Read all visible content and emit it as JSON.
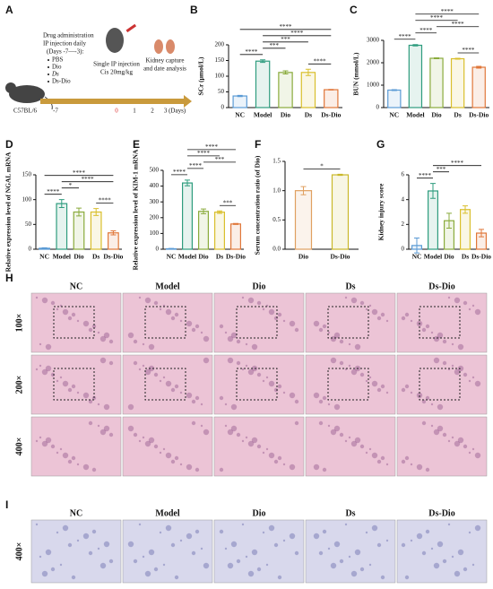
{
  "diagram": {
    "panel_label": "A",
    "admin_lines": [
      "Drug administration",
      "IP injection daily",
      "(Days -7—-3):"
    ],
    "groups": [
      "PBS",
      "Dio",
      "Ds",
      "Ds-Dio"
    ],
    "injection_lines": [
      "Single IP injection",
      "Cis 20mg/kg"
    ],
    "analysis_lines": [
      "Kidney capture",
      "and date analysis"
    ],
    "strain": "C57BL/6",
    "timeline": [
      "-7",
      "0",
      "1",
      "2",
      "3 (Days)"
    ]
  },
  "chart_data": [
    {
      "type": "bar",
      "panel_label": "B",
      "ylabel": "SCr (μmol/L)",
      "categories": [
        "NC",
        "Model",
        "Dio",
        "Ds",
        "Ds-Dio"
      ],
      "values": [
        37,
        148,
        112,
        112,
        57
      ],
      "errors": [
        2,
        4,
        5,
        10,
        1
      ],
      "colors": [
        "#5b9bd5",
        "#2e9c7e",
        "#8aab3c",
        "#d9bf2c",
        "#e0773a"
      ],
      "ylim": [
        0,
        200
      ],
      "yticks": [
        0,
        50,
        100,
        150,
        200
      ],
      "annotations": [
        {
          "between": [
            "NC",
            "Model"
          ],
          "label": "****"
        },
        {
          "between": [
            "Model",
            "Dio"
          ],
          "label": "***"
        },
        {
          "between": [
            "Ds",
            "Ds-Dio"
          ],
          "label": "****"
        },
        {
          "between": [
            "Model",
            "Ds"
          ],
          "label": "***"
        },
        {
          "between": [
            "Model",
            "Ds-Dio"
          ],
          "label": "****"
        },
        {
          "between": [
            "NC",
            "Ds-Dio"
          ],
          "label": "****"
        }
      ]
    },
    {
      "type": "bar",
      "panel_label": "C",
      "ylabel": "BUN (mmol/L)",
      "categories": [
        "NC",
        "Model",
        "Dio",
        "Ds",
        "Ds-Dio"
      ],
      "values": [
        780,
        2780,
        2200,
        2180,
        1800
      ],
      "errors": [
        20,
        30,
        20,
        20,
        40
      ],
      "colors": [
        "#5b9bd5",
        "#2e9c7e",
        "#8aab3c",
        "#d9bf2c",
        "#e0773a"
      ],
      "ylim": [
        0,
        3000
      ],
      "yticks": [
        0,
        1000,
        2000,
        3000
      ],
      "annotations": [
        {
          "between": [
            "NC",
            "Model"
          ],
          "label": "****"
        },
        {
          "between": [
            "Ds",
            "Ds-Dio"
          ],
          "label": "****"
        },
        {
          "between": [
            "Model",
            "Dio"
          ],
          "label": "****"
        },
        {
          "between": [
            "Dio",
            "Ds-Dio"
          ],
          "label": "****"
        },
        {
          "between": [
            "Model",
            "Ds"
          ],
          "label": "****"
        },
        {
          "between": [
            "Model",
            "Ds-Dio"
          ],
          "label": "****"
        }
      ]
    },
    {
      "type": "bar",
      "panel_label": "D",
      "ylabel": "Relative expression level of NGAL mRNA",
      "categories": [
        "NC",
        "Model",
        "Dio",
        "Ds",
        "Ds-Dio"
      ],
      "values": [
        2,
        92,
        75,
        75,
        33
      ],
      "errors": [
        1,
        8,
        8,
        7,
        4
      ],
      "colors": [
        "#5b9bd5",
        "#2e9c7e",
        "#8aab3c",
        "#d9bf2c",
        "#e0773a"
      ],
      "ylim": [
        0,
        150
      ],
      "yticks": [
        0,
        50,
        100,
        150
      ],
      "annotations": [
        {
          "between": [
            "NC",
            "Model"
          ],
          "label": "****"
        },
        {
          "between": [
            "Model",
            "Dio"
          ],
          "label": "*"
        },
        {
          "between": [
            "Ds",
            "Ds-Dio"
          ],
          "label": "****"
        },
        {
          "between": [
            "Model",
            "Ds-Dio"
          ],
          "label": "****"
        },
        {
          "between": [
            "NC",
            "Ds-Dio"
          ],
          "label": "****"
        }
      ]
    },
    {
      "type": "bar",
      "panel_label": "E",
      "ylabel": "Relative expression level of KIM-1 mRNA",
      "categories": [
        "NC",
        "Model",
        "Dio",
        "Ds",
        "Ds-Dio"
      ],
      "values": [
        3,
        420,
        240,
        235,
        160
      ],
      "errors": [
        2,
        18,
        15,
        8,
        3
      ],
      "colors": [
        "#5b9bd5",
        "#2e9c7e",
        "#8aab3c",
        "#d9bf2c",
        "#e0773a"
      ],
      "ylim": [
        0,
        500
      ],
      "yticks": [
        0,
        100,
        200,
        300,
        400,
        500
      ],
      "annotations": [
        {
          "between": [
            "NC",
            "Model"
          ],
          "label": "****"
        },
        {
          "between": [
            "Ds",
            "Ds-Dio"
          ],
          "label": "***"
        },
        {
          "between": [
            "Model",
            "Dio"
          ],
          "label": "****"
        },
        {
          "between": [
            "Dio",
            "Ds-Dio"
          ],
          "label": "***"
        },
        {
          "between": [
            "Model",
            "Ds"
          ],
          "label": "****"
        },
        {
          "between": [
            "Model",
            "Ds-Dio"
          ],
          "label": "****"
        }
      ]
    },
    {
      "type": "bar",
      "panel_label": "F",
      "ylabel": "Serum concentration ratio (of Dio)",
      "categories": [
        "Dio",
        "Ds-Dio"
      ],
      "values": [
        1.0,
        1.27
      ],
      "errors": [
        0.07,
        0.01
      ],
      "colors": [
        "#e0a060",
        "#c9b82a"
      ],
      "ylim": [
        0,
        1.5
      ],
      "yticks": [
        {
          "value": 0,
          "label": "0.0"
        },
        0.5,
        {
          "value": 1,
          "label": "1.0"
        },
        1.5
      ],
      "annotations": [
        {
          "between": [
            "Dio",
            "Ds-Dio"
          ],
          "label": "*"
        }
      ]
    },
    {
      "type": "bar",
      "panel_label": "G",
      "ylabel": "Kidney injury score",
      "categories": [
        "NC",
        "Model",
        "Dio",
        "Ds",
        "Ds-Dio"
      ],
      "values": [
        0.3,
        4.7,
        2.3,
        3.2,
        1.3
      ],
      "errors": [
        0.6,
        0.6,
        0.6,
        0.3,
        0.3
      ],
      "colors": [
        "#5b9bd5",
        "#2e9c7e",
        "#8aab3c",
        "#d9bf2c",
        "#e0773a"
      ],
      "ylim": [
        0,
        6
      ],
      "yticks": [
        0,
        2,
        4,
        6
      ],
      "annotations": [
        {
          "between": [
            "NC",
            "Model"
          ],
          "label": "****"
        },
        {
          "between": [
            "Model",
            "Dio"
          ],
          "label": "***"
        },
        {
          "between": [
            "Model",
            "Ds-Dio"
          ],
          "label": "****"
        }
      ]
    }
  ],
  "histology": {
    "panel_label": "H",
    "columns": [
      "NC",
      "Model",
      "Dio",
      "Ds",
      "Ds-Dio"
    ],
    "rows": [
      "100×",
      "200×",
      "400×"
    ]
  },
  "staining": {
    "panel_label": "I",
    "columns": [
      "NC",
      "Model",
      "Dio",
      "Ds",
      "Ds-Dio"
    ],
    "rows": [
      "400×"
    ]
  }
}
